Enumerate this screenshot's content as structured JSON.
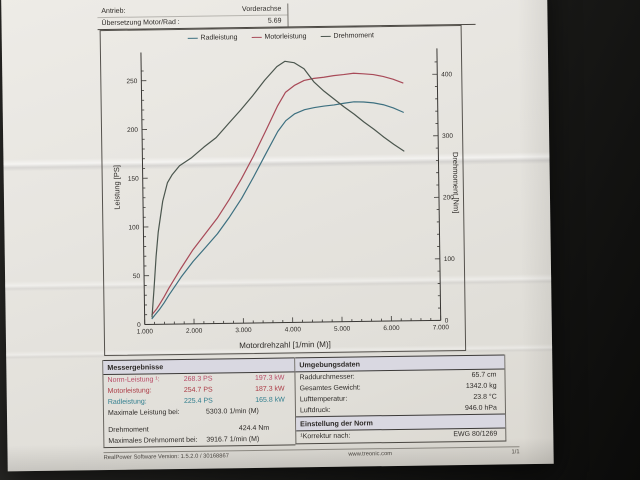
{
  "header_table": {
    "rows": [
      {
        "label": "Antrieb:",
        "value": "Vorderachse"
      },
      {
        "label": "Übersetzung Motor/Rad :",
        "value": "5.69"
      }
    ]
  },
  "chart_data": {
    "type": "line",
    "title": "",
    "xlabel": "Motordrehzahl [1/min (M)]",
    "ylabel_left": "Leistung [PS]",
    "ylabel_right": "Drehmoment [Nm]",
    "xlim": [
      1000,
      7000
    ],
    "ylim_left": [
      0,
      279
    ],
    "ylim_right": [
      0,
      442
    ],
    "x_tick_labels": [
      "1.000",
      "2.000",
      "3.000",
      "4.000",
      "5.000",
      "6.000",
      "7.000"
    ],
    "x_major_step": 1000,
    "x_minor_step": 200,
    "left_major_step": 50,
    "left_minor_step": 10,
    "right_major_step": 100,
    "right_minor_step": 20,
    "grid": false,
    "legend_position": "top",
    "legend": [
      {
        "label": "Radleistung",
        "color": "#3d7080"
      },
      {
        "label": "Motorleistung",
        "color": "#a84a58"
      },
      {
        "label": "Drehmoment",
        "color": "#4b564e"
      }
    ],
    "series": [
      {
        "name": "Radleistung",
        "axis": "left",
        "color": "#3d7080",
        "points": [
          [
            1150,
            6
          ],
          [
            1200,
            9
          ],
          [
            1250,
            12
          ],
          [
            1300,
            15
          ],
          [
            1400,
            22
          ],
          [
            1500,
            30
          ],
          [
            1600,
            37
          ],
          [
            1750,
            48
          ],
          [
            2000,
            64
          ],
          [
            2250,
            78
          ],
          [
            2500,
            92
          ],
          [
            2750,
            109
          ],
          [
            3000,
            128
          ],
          [
            3250,
            150
          ],
          [
            3500,
            173
          ],
          [
            3750,
            196
          ],
          [
            3917,
            207
          ],
          [
            4100,
            214
          ],
          [
            4300,
            218
          ],
          [
            4500,
            220
          ],
          [
            4700,
            221.5
          ],
          [
            4900,
            222.5
          ],
          [
            5100,
            224
          ],
          [
            5303,
            225.4
          ],
          [
            5500,
            225
          ],
          [
            5700,
            224
          ],
          [
            5900,
            222
          ],
          [
            6100,
            218.5
          ],
          [
            6300,
            214
          ]
        ]
      },
      {
        "name": "Motorleistung",
        "axis": "left",
        "color": "#a84a58",
        "points": [
          [
            1150,
            10
          ],
          [
            1200,
            13
          ],
          [
            1250,
            16
          ],
          [
            1300,
            20
          ],
          [
            1400,
            28
          ],
          [
            1500,
            37
          ],
          [
            1600,
            45
          ],
          [
            1750,
            57
          ],
          [
            2000,
            76
          ],
          [
            2250,
            92
          ],
          [
            2500,
            108
          ],
          [
            2750,
            127
          ],
          [
            3000,
            148
          ],
          [
            3250,
            171
          ],
          [
            3500,
            196
          ],
          [
            3750,
            222
          ],
          [
            3917,
            236
          ],
          [
            4100,
            243
          ],
          [
            4300,
            248
          ],
          [
            4500,
            250
          ],
          [
            4700,
            251
          ],
          [
            4900,
            252.5
          ],
          [
            5100,
            253.5
          ],
          [
            5303,
            254.7
          ],
          [
            5500,
            254
          ],
          [
            5700,
            253
          ],
          [
            5900,
            251
          ],
          [
            6100,
            248
          ],
          [
            6300,
            244
          ]
        ]
      },
      {
        "name": "Drehmoment",
        "axis": "right",
        "color": "#4b564e",
        "points": [
          [
            1150,
            12
          ],
          [
            1200,
            60
          ],
          [
            1250,
            110
          ],
          [
            1300,
            150
          ],
          [
            1400,
            200
          ],
          [
            1500,
            230
          ],
          [
            1600,
            243
          ],
          [
            1750,
            257
          ],
          [
            2000,
            270
          ],
          [
            2250,
            287
          ],
          [
            2500,
            302
          ],
          [
            2750,
            324
          ],
          [
            3000,
            346
          ],
          [
            3250,
            369
          ],
          [
            3500,
            394
          ],
          [
            3750,
            416
          ],
          [
            3917,
            424.4
          ],
          [
            4100,
            422
          ],
          [
            4300,
            412
          ],
          [
            4500,
            390
          ],
          [
            4700,
            375
          ],
          [
            4900,
            362
          ],
          [
            5100,
            349
          ],
          [
            5303,
            337
          ],
          [
            5500,
            324
          ],
          [
            5700,
            312
          ],
          [
            5900,
            299
          ],
          [
            6100,
            287
          ],
          [
            6300,
            276
          ]
        ]
      }
    ]
  },
  "results_table": {
    "title": "Messergebnisse",
    "power_rows": [
      {
        "label": "Norm-Leistung ¹:",
        "ps": "268.3 PS",
        "kw": "197.3 kW",
        "color": "#b84a66"
      },
      {
        "label": "Motorleistung:",
        "ps": "254.7 PS",
        "kw": "187.3 kW",
        "color": "#ab3a44"
      },
      {
        "label": "Radleistung:",
        "ps": "225.4 PS",
        "kw": "165.8 kW",
        "color": "#2f7d8d"
      }
    ],
    "max_power_row": {
      "label": "Maximale Leistung bei:",
      "value": "5303.0 1/min (M)"
    },
    "torque_row": {
      "label": "Drehmoment",
      "value": "424.4 Nm"
    },
    "max_torque_row": {
      "label": "Maximales Drehmoment bei:",
      "value": "3916.7 1/min (M)"
    }
  },
  "environment_table": {
    "title": "Umgebungsdaten",
    "rows": [
      {
        "label": "Raddurchmesser:",
        "value": "65.7 cm"
      },
      {
        "label": "Gesamtes Gewicht:",
        "value": "1342.0 kg"
      },
      {
        "label": "Lufttemperatur:",
        "value": "23.8 °C"
      },
      {
        "label": "Luftdruck:",
        "value": "946.0 hPa"
      }
    ]
  },
  "norm_table": {
    "title": "Einstellung der Norm",
    "rows": [
      {
        "label": "¹Korrektur nach:",
        "value": "EWG 80/1269"
      }
    ]
  },
  "footer": {
    "left": "RealPower Software Version: 1.5.2.0 / 30168867",
    "center": "www.treonic.com",
    "right": "1/1"
  }
}
